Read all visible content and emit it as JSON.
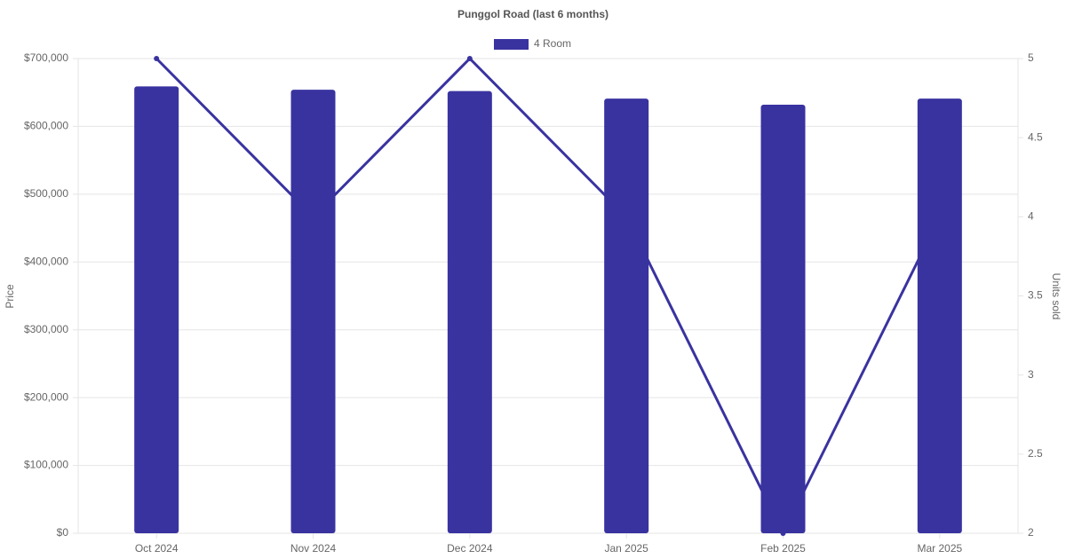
{
  "chart_data": {
    "type": "bar",
    "title": "Punggol Road (last 6 months)",
    "y_label": "Price",
    "y2_label": "Units sold",
    "categories": [
      "Oct 2024",
      "Nov 2024",
      "Dec 2024",
      "Jan 2025",
      "Feb 2025",
      "Mar 2025"
    ],
    "series": [
      {
        "name": "4 Room",
        "type": "bar",
        "color": "#3933a0",
        "values": [
          659000,
          654000,
          652000,
          641000,
          632000,
          641000
        ]
      },
      {
        "type": "line",
        "axis": "y2",
        "color": "#3933a0",
        "values": [
          5,
          4,
          5,
          4,
          2,
          4
        ]
      }
    ],
    "ylim": [
      0,
      700000
    ],
    "yticks": [
      {
        "value": 0,
        "label": "$0"
      },
      {
        "value": 100000,
        "label": "$100,000"
      },
      {
        "value": 200000,
        "label": "$200,000"
      },
      {
        "value": 300000,
        "label": "$300,000"
      },
      {
        "value": 400000,
        "label": "$400,000"
      },
      {
        "value": 500000,
        "label": "$500,000"
      },
      {
        "value": 600000,
        "label": "$600,000"
      },
      {
        "value": 700000,
        "label": "$700,000"
      }
    ],
    "y2lim": [
      2,
      5
    ],
    "y2ticks": [
      2,
      2.5,
      3,
      3.5,
      4,
      4.5,
      5
    ],
    "grid": true,
    "legend": "top"
  }
}
